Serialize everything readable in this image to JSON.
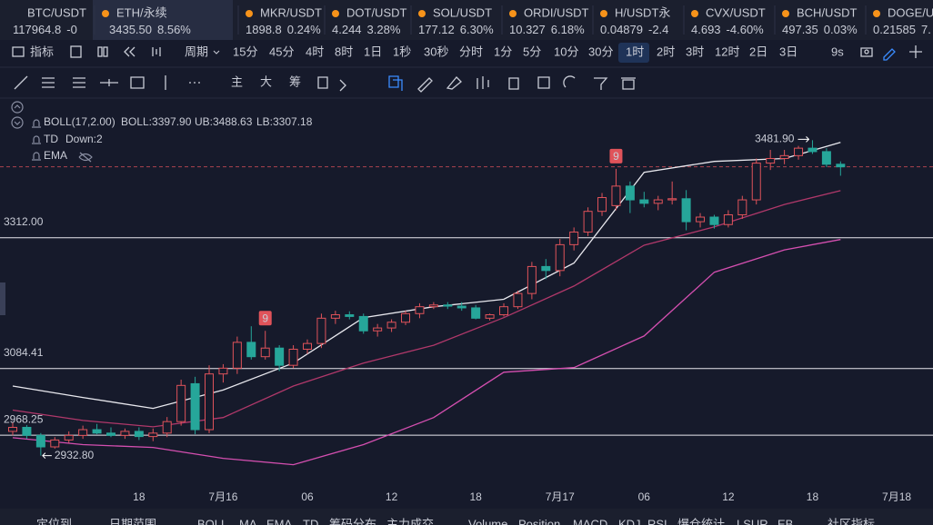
{
  "tickers": [
    {
      "symbol": "BTC/USDT",
      "price": "117964.8",
      "change": "-0",
      "color": "#f0515a"
    },
    {
      "symbol": "ETH/永续",
      "price": "3435.50",
      "change": "8.56%",
      "color": "#2ebd85"
    },
    {
      "symbol": "MKR/USDT",
      "price": "1898.8",
      "change": "0.24%",
      "color": "#2ebd85"
    },
    {
      "symbol": "DOT/USDT",
      "price": "4.244",
      "change": "3.28%",
      "color": "#2ebd85"
    },
    {
      "symbol": "SOL/USDT",
      "price": "177.12",
      "change": "6.30%",
      "color": "#f0515a"
    },
    {
      "symbol": "ORDI/USDT",
      "price": "10.327",
      "change": "6.18%",
      "color": "#f0515a"
    },
    {
      "symbol": "H/USDT永",
      "price": "0.04879",
      "change": "-2.4",
      "color": "#f0515a"
    },
    {
      "symbol": "CVX/USDT",
      "price": "4.693",
      "change": "-4.60%",
      "color": "#f0515a"
    },
    {
      "symbol": "BCH/USDT",
      "price": "497.35",
      "change": "0.03%",
      "color": "#2ebd85"
    },
    {
      "symbol": "DOGE/USDT",
      "price": "0.21585",
      "change": "7.",
      "color": "#2ebd85"
    }
  ],
  "toolbar": {
    "indicator": "指标",
    "period": "周期",
    "intervals": [
      "15分",
      "45分",
      "4时",
      "8时",
      "1日",
      "1秒",
      "30秒",
      "分时",
      "1分",
      "5分",
      "10分",
      "30分",
      "1时",
      "2时",
      "3时",
      "12时",
      "2日",
      "3日"
    ],
    "refresh": "9s"
  },
  "draw_tools": [
    "主",
    "大",
    "筹"
  ],
  "legend": {
    "boll": "BOLL(17,2.00)",
    "boll_mid": "BOLL:3397.90",
    "ub": "UB:3488.63",
    "lb": "LB:3307.18",
    "td": "TD",
    "td_value": "Down:2",
    "ema": "EMA"
  },
  "chart_data": {
    "type": "candlestick",
    "xlim": [
      -0.907,
      65.59
    ],
    "ylim": [
      2880,
      3552
    ],
    "xticks": [
      {
        "value": 9,
        "label": "18"
      },
      {
        "value": 15,
        "label": "7月16"
      },
      {
        "value": 21,
        "label": "06"
      },
      {
        "value": 27,
        "label": "12"
      },
      {
        "value": 33,
        "label": "18"
      },
      {
        "value": 39,
        "label": "7月17"
      },
      {
        "value": 45,
        "label": "06"
      },
      {
        "value": 51,
        "label": "12"
      },
      {
        "value": 57,
        "label": "18"
      },
      {
        "value": 63,
        "label": "7月18"
      }
    ],
    "up_color": "#e0535a",
    "down_color": "#26a69a",
    "candles": [
      [
        2975,
        2990,
        2968,
        2982
      ],
      [
        2982,
        2986,
        2962,
        2968
      ],
      [
        2968,
        2972,
        2932.8,
        2948
      ],
      [
        2948,
        2965,
        2945,
        2960
      ],
      [
        2960,
        2975,
        2955,
        2968
      ],
      [
        2968,
        2985,
        2962,
        2978
      ],
      [
        2978,
        2988,
        2970,
        2972
      ],
      [
        2972,
        2982,
        2965,
        2968
      ],
      [
        2968,
        2980,
        2962,
        2975
      ],
      [
        2975,
        2982,
        2960,
        2966
      ],
      [
        2966,
        2980,
        2958,
        2972
      ],
      [
        2972,
        3000,
        2965,
        2992
      ],
      [
        2992,
        3065,
        2985,
        3055
      ],
      [
        3058,
        3070,
        2970,
        2978
      ],
      [
        2978,
        3090,
        2972,
        3075
      ],
      [
        3075,
        3092,
        3060,
        3085
      ],
      [
        3085,
        3140,
        3075,
        3130
      ],
      [
        3130,
        3158,
        3100,
        3105
      ],
      [
        3105,
        3150,
        3100,
        3120
      ],
      [
        3120,
        3125,
        3080,
        3090
      ],
      [
        3090,
        3125,
        3085,
        3118
      ],
      [
        3118,
        3135,
        3110,
        3128
      ],
      [
        3128,
        3180,
        3120,
        3172
      ],
      [
        3172,
        3185,
        3162,
        3178
      ],
      [
        3178,
        3184,
        3170,
        3175
      ],
      [
        3175,
        3180,
        3145,
        3150
      ],
      [
        3150,
        3162,
        3140,
        3155
      ],
      [
        3155,
        3170,
        3148,
        3165
      ],
      [
        3165,
        3185,
        3160,
        3180
      ],
      [
        3180,
        3198,
        3172,
        3192
      ],
      [
        3192,
        3200,
        3188,
        3195
      ],
      [
        3195,
        3200,
        3188,
        3193
      ],
      [
        3193,
        3200,
        3185,
        3190
      ],
      [
        3190,
        3195,
        3170,
        3172
      ],
      [
        3172,
        3180,
        3168,
        3178
      ],
      [
        3178,
        3198,
        3175,
        3192
      ],
      [
        3192,
        3220,
        3188,
        3215
      ],
      [
        3215,
        3270,
        3205,
        3262
      ],
      [
        3262,
        3275,
        3240,
        3255
      ],
      [
        3255,
        3310,
        3245,
        3300
      ],
      [
        3300,
        3330,
        3290,
        3322
      ],
      [
        3322,
        3365,
        3315,
        3358
      ],
      [
        3358,
        3390,
        3350,
        3382
      ],
      [
        3368,
        3432,
        3360,
        3402
      ],
      [
        3402,
        3410,
        3355,
        3378
      ],
      [
        3378,
        3392,
        3365,
        3372
      ],
      [
        3372,
        3385,
        3360,
        3378
      ],
      [
        3378,
        3410,
        3370,
        3380
      ],
      [
        3380,
        3395,
        3325,
        3340
      ],
      [
        3340,
        3355,
        3330,
        3348
      ],
      [
        3348,
        3352,
        3328,
        3335
      ],
      [
        3335,
        3360,
        3330,
        3352
      ],
      [
        3352,
        3385,
        3345,
        3378
      ],
      [
        3378,
        3450,
        3370,
        3442
      ],
      [
        3442,
        3465,
        3430,
        3450
      ],
      [
        3450,
        3465,
        3440,
        3455
      ],
      [
        3455,
        3472,
        3448,
        3468
      ],
      [
        3468,
        3481.9,
        3458,
        3462
      ],
      [
        3462,
        3468,
        3435,
        3440
      ],
      [
        3440,
        3445,
        3420,
        3435.5
      ]
    ],
    "boll": {
      "x": [
        0,
        5,
        10,
        15,
        20,
        25,
        30,
        35,
        40,
        45,
        50,
        55,
        59
      ],
      "series": [
        {
          "color": "#e8e8ee",
          "values": [
            3054,
            3034,
            3015,
            3047,
            3094,
            3173,
            3192,
            3205,
            3268,
            3426,
            3445,
            3450,
            3478
          ]
        },
        {
          "color": "#b0386a",
          "values": [
            3012,
            2994,
            2983,
            2999,
            3054,
            3094,
            3125,
            3173,
            3228,
            3299,
            3331,
            3370,
            3394
          ]
        },
        {
          "color": "#d44fb0",
          "values": [
            2964,
            2952,
            2947,
            2928,
            2917,
            2952,
            2999,
            3078,
            3086,
            3141,
            3252,
            3291,
            3309
          ]
        }
      ]
    },
    "hlines": [
      {
        "value": 3312,
        "label": "3312.00"
      },
      3084.41,
      2968.25
    ],
    "last_price": 3435.5,
    "high": {
      "at": 57,
      "value": 3481.9,
      "label": "3481.90"
    },
    "low": {
      "at": 2,
      "value": 2932.8,
      "label": "2932.80"
    },
    "td_marks": [
      {
        "at": 18,
        "label": "9"
      },
      {
        "at": 43,
        "label": "9"
      }
    ]
  },
  "bottom": [
    "定位到",
    "日期范围",
    "BOLL",
    "MA",
    "EMA",
    "TD",
    "筹码分布",
    "主力成交",
    "Volume",
    "Position",
    "MACD",
    "KDJ",
    "RSI",
    "爆仓统计",
    "LSUR",
    "EB",
    "社区指标"
  ]
}
